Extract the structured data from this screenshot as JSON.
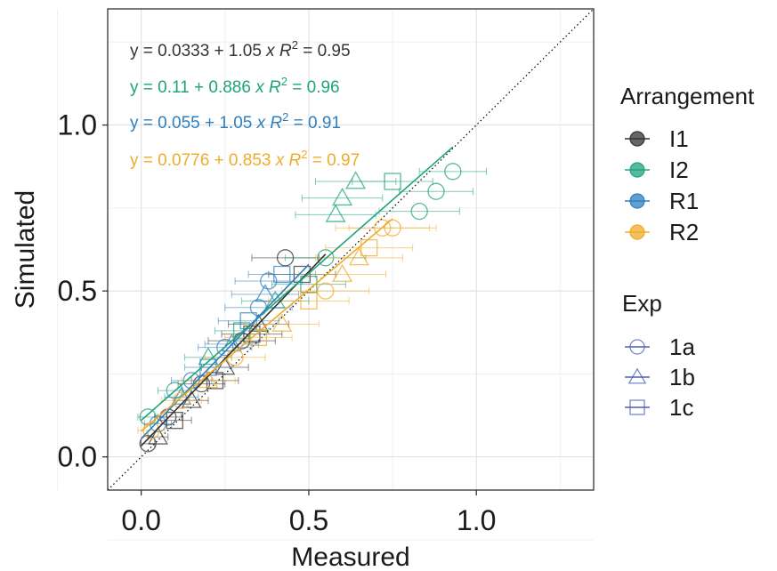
{
  "chart_data": {
    "type": "scatter",
    "xlabel": "Measured",
    "ylabel": "Simulated",
    "xlim": [
      -0.1,
      1.35
    ],
    "ylim": [
      -0.1,
      1.35
    ],
    "x_ticks": [
      0.0,
      0.5,
      1.0
    ],
    "x_tick_labels": [
      "0.0",
      "0.5",
      "1.0"
    ],
    "y_ticks": [
      0.0,
      0.5,
      1.0
    ],
    "y_tick_labels": [
      "0.0",
      "0.5",
      "1.0"
    ],
    "grid": true,
    "identity_line": true,
    "colors": {
      "I1": "#333333",
      "I2": "#1fa37e",
      "R1": "#2d7fc0",
      "R2": "#f0ab2a"
    },
    "legend_arrangement": {
      "title": "Arrangement",
      "entries": [
        "I1",
        "I2",
        "R1",
        "R2"
      ]
    },
    "legend_exp": {
      "title": "Exp",
      "entries": [
        "1a",
        "1b",
        "1c"
      ],
      "legend_color": "#4a60b8"
    },
    "equations": [
      {
        "series": "I1",
        "lhs": "y = ",
        "intercept": "0.0333",
        "op": " + ",
        "slope": "1.05",
        "x": " x",
        "r2_label": "R",
        "r2_sup": "2",
        "r2_value": " = 0.95"
      },
      {
        "series": "I2",
        "lhs": "y = ",
        "intercept": "0.11",
        "op": " + ",
        "slope": "0.886",
        "x": " x",
        "r2_label": "R",
        "r2_sup": "2",
        "r2_value": " = 0.96"
      },
      {
        "series": "R1",
        "lhs": "y = ",
        "intercept": "0.055",
        "op": " + ",
        "slope": "1.05",
        "x": " x",
        "r2_label": "R",
        "r2_sup": "2",
        "r2_value": " = 0.91"
      },
      {
        "series": "R2",
        "lhs": "y = ",
        "intercept": "0.0776",
        "op": " + ",
        "slope": "0.853",
        "x": " x",
        "r2_label": "R",
        "r2_sup": "2",
        "r2_value": " = 0.97"
      }
    ],
    "fit_lines": [
      {
        "series": "I1",
        "intercept": 0.0333,
        "slope": 1.05,
        "x_range": [
          0.0,
          0.55
        ]
      },
      {
        "series": "I2",
        "intercept": 0.11,
        "slope": 0.886,
        "x_range": [
          0.0,
          0.93
        ]
      },
      {
        "series": "R1",
        "intercept": 0.055,
        "slope": 1.05,
        "x_range": [
          0.0,
          0.5
        ]
      },
      {
        "series": "R2",
        "intercept": 0.0776,
        "slope": 0.853,
        "x_range": [
          0.0,
          0.75
        ]
      }
    ],
    "series": [
      {
        "name": "I1",
        "points": [
          {
            "exp": "1a",
            "x": 0.02,
            "y": 0.04,
            "xerr": 0.02
          },
          {
            "exp": "1a",
            "x": 0.08,
            "y": 0.12,
            "xerr": 0.04
          },
          {
            "exp": "1a",
            "x": 0.18,
            "y": 0.22,
            "xerr": 0.07
          },
          {
            "exp": "1a",
            "x": 0.3,
            "y": 0.35,
            "xerr": 0.1
          },
          {
            "exp": "1a",
            "x": 0.43,
            "y": 0.6,
            "xerr": 0.1
          },
          {
            "exp": "1b",
            "x": 0.05,
            "y": 0.06,
            "xerr": 0.03
          },
          {
            "exp": "1b",
            "x": 0.15,
            "y": 0.17,
            "xerr": 0.05
          },
          {
            "exp": "1b",
            "x": 0.25,
            "y": 0.27,
            "xerr": 0.07
          },
          {
            "exp": "1b",
            "x": 0.35,
            "y": 0.4,
            "xerr": 0.09
          },
          {
            "exp": "1c",
            "x": 0.1,
            "y": 0.11,
            "xerr": 0.05
          },
          {
            "exp": "1c",
            "x": 0.22,
            "y": 0.23,
            "xerr": 0.07
          },
          {
            "exp": "1c",
            "x": 0.33,
            "y": 0.37,
            "xerr": 0.09
          },
          {
            "exp": "1c",
            "x": 0.48,
            "y": 0.55,
            "xerr": 0.1
          }
        ]
      },
      {
        "name": "I2",
        "points": [
          {
            "exp": "1a",
            "x": 0.02,
            "y": 0.12,
            "xerr": 0.03
          },
          {
            "exp": "1a",
            "x": 0.1,
            "y": 0.2,
            "xerr": 0.05
          },
          {
            "exp": "1a",
            "x": 0.55,
            "y": 0.6,
            "xerr": 0.12
          },
          {
            "exp": "1a",
            "x": 0.83,
            "y": 0.74,
            "xerr": 0.12
          },
          {
            "exp": "1a",
            "x": 0.88,
            "y": 0.8,
            "xerr": 0.11
          },
          {
            "exp": "1a",
            "x": 0.93,
            "y": 0.86,
            "xerr": 0.1
          },
          {
            "exp": "1b",
            "x": 0.2,
            "y": 0.3,
            "xerr": 0.07
          },
          {
            "exp": "1b",
            "x": 0.4,
            "y": 0.47,
            "xerr": 0.1
          },
          {
            "exp": "1b",
            "x": 0.58,
            "y": 0.73,
            "xerr": 0.12
          },
          {
            "exp": "1b",
            "x": 0.6,
            "y": 0.78,
            "xerr": 0.12
          },
          {
            "exp": "1b",
            "x": 0.64,
            "y": 0.83,
            "xerr": 0.12
          },
          {
            "exp": "1c",
            "x": 0.3,
            "y": 0.38,
            "xerr": 0.08
          },
          {
            "exp": "1c",
            "x": 0.5,
            "y": 0.52,
            "xerr": 0.11
          },
          {
            "exp": "1c",
            "x": 0.75,
            "y": 0.83,
            "xerr": 0.12
          }
        ]
      },
      {
        "name": "R1",
        "points": [
          {
            "exp": "1a",
            "x": 0.05,
            "y": 0.1,
            "xerr": 0.04
          },
          {
            "exp": "1a",
            "x": 0.15,
            "y": 0.23,
            "xerr": 0.06
          },
          {
            "exp": "1a",
            "x": 0.25,
            "y": 0.33,
            "xerr": 0.08
          },
          {
            "exp": "1a",
            "x": 0.35,
            "y": 0.45,
            "xerr": 0.1
          },
          {
            "exp": "1a",
            "x": 0.38,
            "y": 0.53,
            "xerr": 0.1
          },
          {
            "exp": "1b",
            "x": 0.12,
            "y": 0.18,
            "xerr": 0.05
          },
          {
            "exp": "1b",
            "x": 0.27,
            "y": 0.34,
            "xerr": 0.08
          },
          {
            "exp": "1b",
            "x": 0.37,
            "y": 0.49,
            "xerr": 0.1
          },
          {
            "exp": "1c",
            "x": 0.2,
            "y": 0.27,
            "xerr": 0.07
          },
          {
            "exp": "1c",
            "x": 0.32,
            "y": 0.41,
            "xerr": 0.09
          },
          {
            "exp": "1c",
            "x": 0.42,
            "y": 0.55,
            "xerr": 0.1
          }
        ]
      },
      {
        "name": "R2",
        "points": [
          {
            "exp": "1a",
            "x": 0.03,
            "y": 0.08,
            "xerr": 0.04
          },
          {
            "exp": "1a",
            "x": 0.12,
            "y": 0.17,
            "xerr": 0.06
          },
          {
            "exp": "1a",
            "x": 0.28,
            "y": 0.3,
            "xerr": 0.09
          },
          {
            "exp": "1a",
            "x": 0.55,
            "y": 0.5,
            "xerr": 0.13
          },
          {
            "exp": "1a",
            "x": 0.72,
            "y": 0.69,
            "xerr": 0.14
          },
          {
            "exp": "1a",
            "x": 0.75,
            "y": 0.69,
            "xerr": 0.13
          },
          {
            "exp": "1b",
            "x": 0.2,
            "y": 0.23,
            "xerr": 0.08
          },
          {
            "exp": "1b",
            "x": 0.42,
            "y": 0.4,
            "xerr": 0.11
          },
          {
            "exp": "1b",
            "x": 0.6,
            "y": 0.55,
            "xerr": 0.13
          },
          {
            "exp": "1b",
            "x": 0.65,
            "y": 0.6,
            "xerr": 0.13
          },
          {
            "exp": "1c",
            "x": 0.35,
            "y": 0.36,
            "xerr": 0.1
          },
          {
            "exp": "1c",
            "x": 0.5,
            "y": 0.47,
            "xerr": 0.12
          },
          {
            "exp": "1c",
            "x": 0.68,
            "y": 0.63,
            "xerr": 0.13
          }
        ]
      }
    ]
  }
}
